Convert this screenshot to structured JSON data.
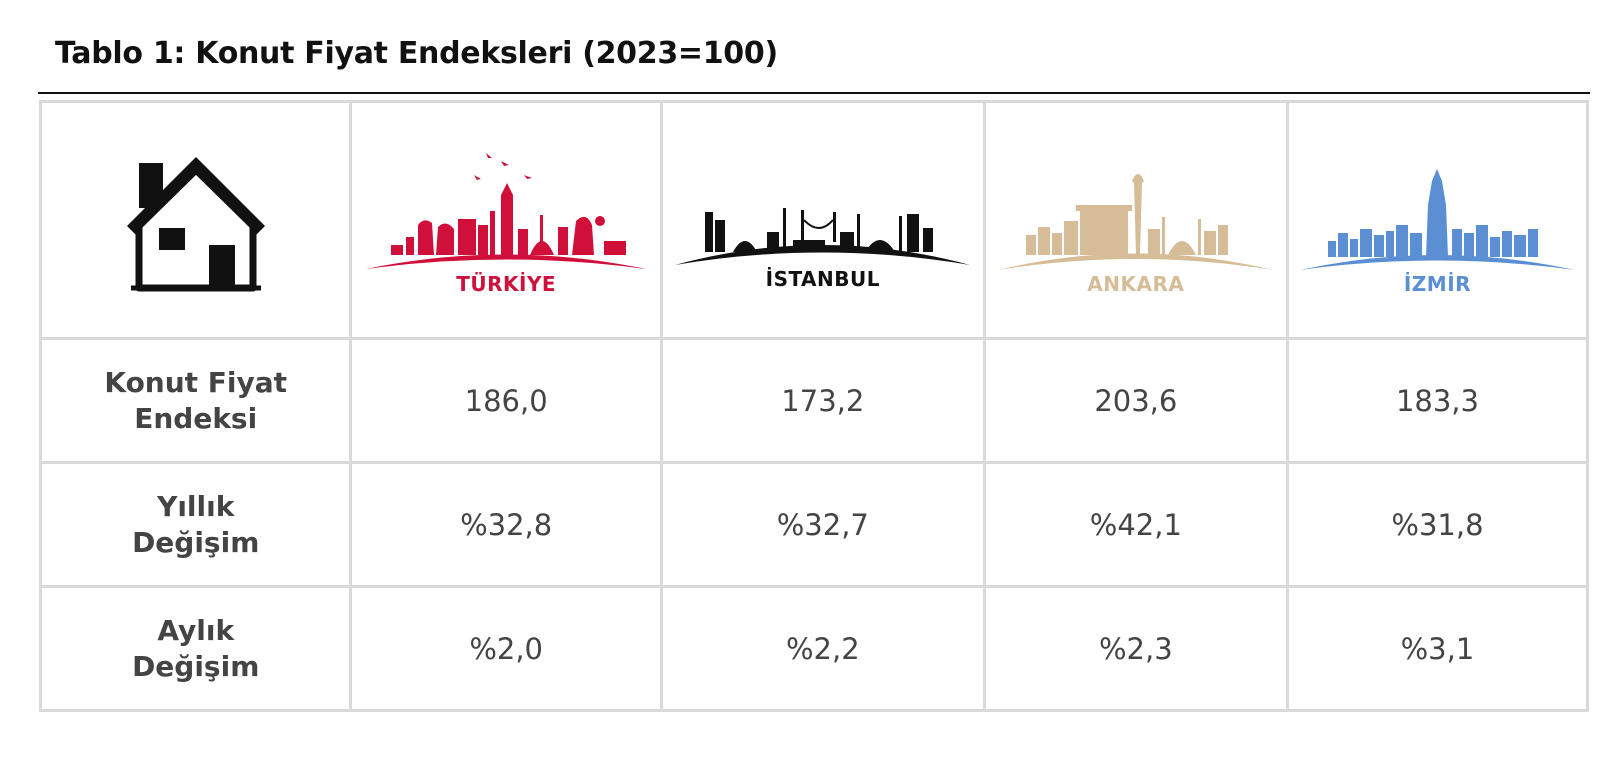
{
  "title": "Tablo 1: Konut Fiyat Endeksleri (2023=100)",
  "icons": {
    "house": "house-icon"
  },
  "cities": [
    {
      "name": "TÜRKİYE",
      "color": "#d0103a",
      "icon": "turkiye-skyline-icon"
    },
    {
      "name": "İSTANBUL",
      "color": "#111111",
      "icon": "istanbul-skyline-icon"
    },
    {
      "name": "ANKARA",
      "color": "#d6bd98",
      "icon": "ankara-skyline-icon"
    },
    {
      "name": "İZMİR",
      "color": "#5b8fd4",
      "icon": "izmir-skyline-icon"
    }
  ],
  "rows": [
    {
      "label_line1": "Konut Fiyat",
      "label_line2": "Endeksi",
      "values": [
        "186,0",
        "173,2",
        "203,6",
        "183,3"
      ]
    },
    {
      "label_line1": "Yıllık",
      "label_line2": "Değişim",
      "values": [
        "%32,8",
        "%32,7",
        "%42,1",
        "%31,8"
      ]
    },
    {
      "label_line1": "Aylık",
      "label_line2": "Değişim",
      "values": [
        "%2,0",
        "%2,2",
        "%2,3",
        "%3,1"
      ]
    }
  ]
}
